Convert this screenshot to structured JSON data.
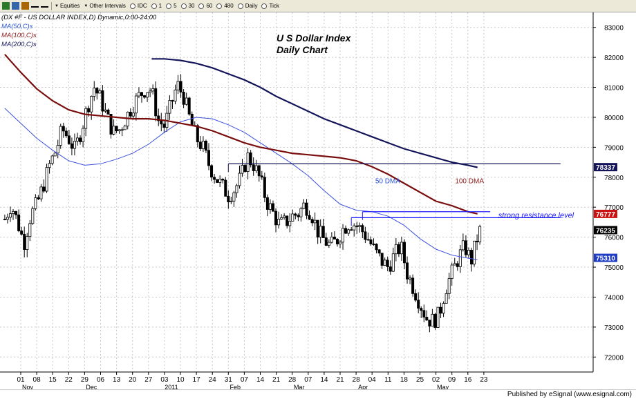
{
  "toolbar": {
    "items": [
      {
        "label": "Equities",
        "kind": "dropdown"
      },
      {
        "label": "Other Intervals",
        "kind": "dropdown"
      },
      {
        "label": "IDC",
        "kind": "radio"
      },
      {
        "label": "1",
        "kind": "radio"
      },
      {
        "label": "5",
        "kind": "radio"
      },
      {
        "label": "30",
        "kind": "radio"
      },
      {
        "label": "60",
        "kind": "radio"
      },
      {
        "label": "480",
        "kind": "radio"
      },
      {
        "label": "Daily",
        "kind": "radio"
      },
      {
        "label": "Tick",
        "kind": "radio"
      }
    ],
    "icons": [
      "chart-icon",
      "grid-icon",
      "layout-icon",
      "cursor-icon",
      "add-icon"
    ]
  },
  "footer": {
    "text": "Published by eSignal (www.esignal.com)"
  },
  "colors": {
    "candle": "#000000",
    "ma50": "#3b4fe0",
    "ma100": "#7a0d0d",
    "ma200": "#14145a",
    "resistance": "#1a1aff",
    "grid": "#c8c8c8",
    "label_ma50": "#2b55d9",
    "label_ma100": "#8b1a1a"
  },
  "chart_data": {
    "type": "candlestick",
    "header": {
      "symbol_line": "(DX #F - US DOLLAR INDEX,D) Dynamic,0:00-24:00",
      "indicators": [
        "MA(50,C)s",
        "MA(100,C)s",
        "MA(200,C)s"
      ]
    },
    "title": [
      "U S Dollar Index",
      "Daily Chart"
    ],
    "y_ticks": [
      72000,
      73000,
      74000,
      75000,
      76000,
      77000,
      78000,
      79000,
      80000,
      81000,
      82000,
      83000
    ],
    "ylim": [
      71500,
      83500
    ],
    "x_ticks": [
      "01",
      "08",
      "15",
      "22",
      "29",
      "06",
      "13",
      "20",
      "27",
      "03",
      "10",
      "17",
      "24",
      "31",
      "07",
      "14",
      "21",
      "28",
      "07",
      "14",
      "21",
      "28",
      "04",
      "11",
      "18",
      "25",
      "02",
      "09",
      "16",
      "23"
    ],
    "month_labels": [
      {
        "label": "Nov",
        "tick": 0
      },
      {
        "label": "Dec",
        "tick": 4
      },
      {
        "label": "2011",
        "tick": 9
      },
      {
        "label": "Feb",
        "tick": 13
      },
      {
        "label": "Mar",
        "tick": 17
      },
      {
        "label": "Apr",
        "tick": 21
      },
      {
        "label": "May",
        "tick": 26
      }
    ],
    "price_tags": [
      {
        "label": "78337",
        "value": 78337,
        "bg": "#14145a"
      },
      {
        "label": "76777",
        "value": 76777,
        "bg": "#cc1111"
      },
      {
        "label": "76235",
        "value": 76235,
        "bg": "#000000"
      },
      {
        "label": "75310",
        "value": 75310,
        "bg": "#1f3cc4"
      }
    ],
    "annotations": [
      {
        "text": "50 DMA",
        "x": 22.2,
        "y": 77800,
        "color": "#2b55d9"
      },
      {
        "text": "100 DMA",
        "x": 27.2,
        "y": 77800,
        "color": "#8b1a1a"
      },
      {
        "text": "strong resistance level",
        "x": 29.9,
        "y": 76650,
        "color": "#1a1aff"
      }
    ],
    "hlines": [
      {
        "y": 78450,
        "x_from": 13.0,
        "x_to": 33.8,
        "color": "#14145a"
      },
      {
        "y": 76850,
        "x_from": 21.4,
        "x_to": 29.4,
        "color": "#1a1aff"
      },
      {
        "y": 76650,
        "x_from": 20.7,
        "x_to": 33.8,
        "color": "#1a1aff"
      }
    ],
    "ma_series": [
      {
        "name": "MA(50,C)s",
        "color": "#3b4fe0",
        "points": [
          [
            -1.0,
            80300
          ],
          [
            0.0,
            79800
          ],
          [
            1.0,
            79300
          ],
          [
            2.0,
            78900
          ],
          [
            3.0,
            78550
          ],
          [
            4.0,
            78400
          ],
          [
            5.0,
            78450
          ],
          [
            6.0,
            78600
          ],
          [
            7.0,
            78800
          ],
          [
            8.0,
            79100
          ],
          [
            9.0,
            79500
          ],
          [
            10.0,
            79850
          ],
          [
            11.0,
            80000
          ],
          [
            12.0,
            79950
          ],
          [
            13.0,
            79750
          ],
          [
            14.0,
            79500
          ],
          [
            15.0,
            79150
          ],
          [
            16.0,
            78800
          ],
          [
            17.0,
            78450
          ],
          [
            18.0,
            78050
          ],
          [
            19.0,
            77550
          ],
          [
            20.0,
            77100
          ],
          [
            21.0,
            76900
          ],
          [
            22.0,
            76850
          ],
          [
            23.0,
            76700
          ],
          [
            24.0,
            76400
          ],
          [
            25.0,
            75950
          ],
          [
            26.0,
            75600
          ],
          [
            27.0,
            75400
          ],
          [
            28.0,
            75300
          ],
          [
            28.6,
            75250
          ]
        ]
      },
      {
        "name": "MA(100,C)s",
        "color": "#7a0d0d",
        "points": [
          [
            -1.0,
            82100
          ],
          [
            0.0,
            81500
          ],
          [
            1.0,
            80950
          ],
          [
            2.0,
            80550
          ],
          [
            3.0,
            80250
          ],
          [
            4.0,
            80100
          ],
          [
            5.0,
            80050
          ],
          [
            6.0,
            80000
          ],
          [
            7.0,
            79950
          ],
          [
            8.0,
            79950
          ],
          [
            9.0,
            79900
          ],
          [
            10.0,
            79800
          ],
          [
            11.0,
            79700
          ],
          [
            12.0,
            79550
          ],
          [
            13.0,
            79350
          ],
          [
            14.0,
            79150
          ],
          [
            15.0,
            79000
          ],
          [
            16.0,
            78900
          ],
          [
            17.0,
            78800
          ],
          [
            18.0,
            78750
          ],
          [
            19.0,
            78700
          ],
          [
            20.0,
            78650
          ],
          [
            21.0,
            78550
          ],
          [
            22.0,
            78350
          ],
          [
            23.0,
            78100
          ],
          [
            24.0,
            77800
          ],
          [
            25.0,
            77500
          ],
          [
            26.0,
            77200
          ],
          [
            27.0,
            77050
          ],
          [
            28.0,
            76850
          ],
          [
            28.6,
            76780
          ]
        ]
      },
      {
        "name": "MA(200,C)s",
        "color": "#14145a",
        "points": [
          [
            8.2,
            81950
          ],
          [
            9.0,
            81950
          ],
          [
            10.0,
            81900
          ],
          [
            11.0,
            81800
          ],
          [
            12.0,
            81650
          ],
          [
            13.0,
            81450
          ],
          [
            14.0,
            81250
          ],
          [
            15.0,
            81000
          ],
          [
            16.0,
            80700
          ],
          [
            17.0,
            80450
          ],
          [
            18.0,
            80200
          ],
          [
            19.0,
            79950
          ],
          [
            20.0,
            79750
          ],
          [
            21.0,
            79550
          ],
          [
            22.0,
            79350
          ],
          [
            23.0,
            79150
          ],
          [
            24.0,
            78950
          ],
          [
            25.0,
            78800
          ],
          [
            26.0,
            78650
          ],
          [
            27.0,
            78500
          ],
          [
            28.0,
            78400
          ],
          [
            28.6,
            78330
          ]
        ]
      }
    ],
    "anchors": [
      [
        -1.0,
        76600
      ],
      [
        -0.6,
        77100
      ],
      [
        -0.2,
        76500
      ],
      [
        0.2,
        75800
      ],
      [
        0.6,
        76700
      ],
      [
        1.0,
        77100
      ],
      [
        1.4,
        77700
      ],
      [
        1.8,
        78400
      ],
      [
        2.2,
        78900
      ],
      [
        2.6,
        79600
      ],
      [
        3.0,
        79300
      ],
      [
        3.4,
        78900
      ],
      [
        3.8,
        79600
      ],
      [
        4.2,
        80400
      ],
      [
        4.6,
        81000
      ],
      [
        5.0,
        80600
      ],
      [
        5.4,
        80000
      ],
      [
        5.8,
        79500
      ],
      [
        6.2,
        79600
      ],
      [
        6.6,
        80000
      ],
      [
        7.0,
        80400
      ],
      [
        7.4,
        80700
      ],
      [
        7.8,
        80950
      ],
      [
        8.2,
        80900
      ],
      [
        8.6,
        79900
      ],
      [
        9.0,
        79700
      ],
      [
        9.4,
        80400
      ],
      [
        9.8,
        81100
      ],
      [
        10.2,
        80700
      ],
      [
        10.6,
        79900
      ],
      [
        11.0,
        79300
      ],
      [
        11.4,
        79000
      ],
      [
        11.8,
        78400
      ],
      [
        12.2,
        78000
      ],
      [
        12.6,
        77700
      ],
      [
        13.0,
        77400
      ],
      [
        13.4,
        77600
      ],
      [
        13.8,
        78000
      ],
      [
        14.2,
        78700
      ],
      [
        14.6,
        78400
      ],
      [
        15.0,
        77900
      ],
      [
        15.4,
        77200
      ],
      [
        15.8,
        76800
      ],
      [
        16.2,
        76400
      ],
      [
        16.6,
        76500
      ],
      [
        17.0,
        76700
      ],
      [
        17.4,
        76800
      ],
      [
        17.8,
        77100
      ],
      [
        18.2,
        76800
      ],
      [
        18.6,
        76200
      ],
      [
        19.0,
        75900
      ],
      [
        19.4,
        75700
      ],
      [
        19.8,
        75900
      ],
      [
        20.2,
        76300
      ],
      [
        20.6,
        76500
      ],
      [
        21.0,
        76400
      ],
      [
        21.4,
        76200
      ],
      [
        21.8,
        75900
      ],
      [
        22.2,
        75500
      ],
      [
        22.6,
        75200
      ],
      [
        23.0,
        75000
      ],
      [
        23.4,
        75400
      ],
      [
        23.8,
        75700
      ],
      [
        24.2,
        74800
      ],
      [
        24.6,
        74300
      ],
      [
        25.0,
        73800
      ],
      [
        25.4,
        73300
      ],
      [
        25.8,
        73200
      ],
      [
        26.2,
        73400
      ],
      [
        26.6,
        74300
      ],
      [
        27.0,
        74800
      ],
      [
        27.4,
        75300
      ],
      [
        27.8,
        75700
      ],
      [
        28.2,
        75200
      ],
      [
        28.6,
        76000
      ],
      [
        28.9,
        76400
      ]
    ],
    "candle_x_step": 0.175,
    "noise_amp": 300,
    "seed": 7
  }
}
